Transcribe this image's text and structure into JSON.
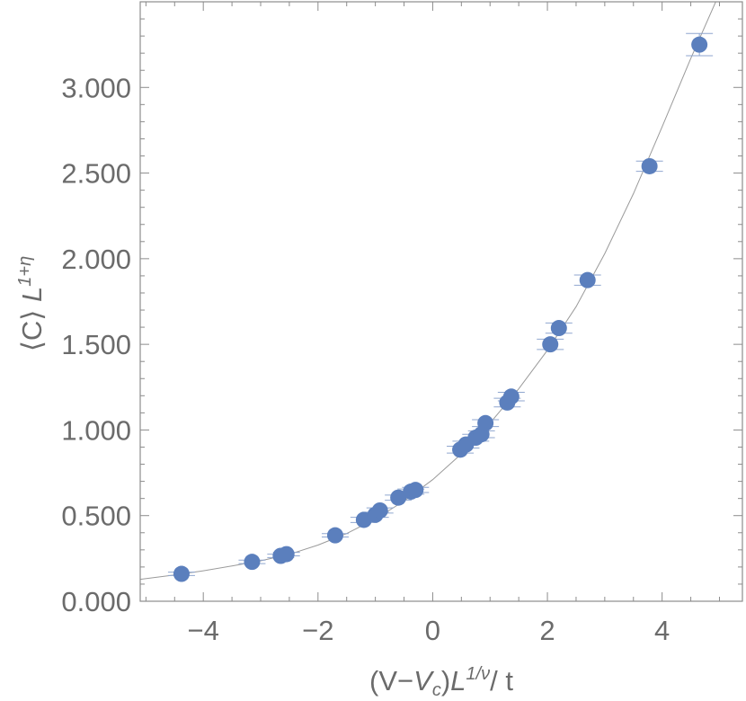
{
  "chart_data": {
    "type": "scatter",
    "xlabel": {
      "prefix": "(V−",
      "vc_main": "V",
      "vc_sub": "c",
      "close": ")",
      "L": "L",
      "sup": "1/ν",
      "suffix": "/ t"
    },
    "ylabel": {
      "prefix": "⟨C⟩ ",
      "L": "L",
      "sup": "1+η"
    },
    "xlim": [
      -5.1,
      5.4
    ],
    "ylim": [
      0,
      3.5
    ],
    "x_ticks": [
      {
        "value": -4,
        "label": "−4"
      },
      {
        "value": -2,
        "label": "−2"
      },
      {
        "value": 0,
        "label": "0"
      },
      {
        "value": 2,
        "label": "2"
      },
      {
        "value": 4,
        "label": "4"
      }
    ],
    "y_ticks": [
      {
        "value": 0,
        "label": "0.000"
      },
      {
        "value": 0.5,
        "label": "0.500"
      },
      {
        "value": 1.0,
        "label": "1.000"
      },
      {
        "value": 1.5,
        "label": "1.500"
      },
      {
        "value": 2.0,
        "label": "2.000"
      },
      {
        "value": 2.5,
        "label": "2.500"
      },
      {
        "value": 3.0,
        "label": "3.000"
      }
    ],
    "x_minor_step": 0.5,
    "y_minor_step": 0.1,
    "grid": false,
    "marker_color": "#5b7fbd",
    "errorbar_color": "#8fa6cf",
    "fit_color": "#9a9a9a",
    "frame_color": "#8c8c8c",
    "points": [
      {
        "x": -4.38,
        "y": 0.16,
        "err": 0.01
      },
      {
        "x": -3.15,
        "y": 0.23,
        "err": 0.01
      },
      {
        "x": -2.65,
        "y": 0.265,
        "err": 0.01
      },
      {
        "x": -2.55,
        "y": 0.275,
        "err": 0.01
      },
      {
        "x": -1.7,
        "y": 0.385,
        "err": 0.01
      },
      {
        "x": -1.2,
        "y": 0.475,
        "err": 0.015
      },
      {
        "x": -1.0,
        "y": 0.505,
        "err": 0.015
      },
      {
        "x": -0.92,
        "y": 0.53,
        "err": 0.015
      },
      {
        "x": -0.6,
        "y": 0.605,
        "err": 0.015
      },
      {
        "x": -0.38,
        "y": 0.64,
        "err": 0.015
      },
      {
        "x": -0.3,
        "y": 0.65,
        "err": 0.015
      },
      {
        "x": 0.48,
        "y": 0.885,
        "err": 0.02
      },
      {
        "x": 0.58,
        "y": 0.915,
        "err": 0.02
      },
      {
        "x": 0.75,
        "y": 0.955,
        "err": 0.02
      },
      {
        "x": 0.85,
        "y": 0.975,
        "err": 0.02
      },
      {
        "x": 0.92,
        "y": 1.04,
        "err": 0.02
      },
      {
        "x": 1.3,
        "y": 1.16,
        "err": 0.025
      },
      {
        "x": 1.37,
        "y": 1.195,
        "err": 0.025
      },
      {
        "x": 2.05,
        "y": 1.5,
        "err": 0.03
      },
      {
        "x": 2.2,
        "y": 1.595,
        "err": 0.03
      },
      {
        "x": 2.7,
        "y": 1.875,
        "err": 0.03
      },
      {
        "x": 3.78,
        "y": 2.54,
        "err": 0.03
      },
      {
        "x": 4.65,
        "y": 3.25,
        "err": 0.065
      }
    ],
    "fit_curve": {
      "x": [
        -5.1,
        -4.5,
        -4.0,
        -3.5,
        -3.0,
        -2.5,
        -2.0,
        -1.5,
        -1.0,
        -0.5,
        0.0,
        0.5,
        1.0,
        1.5,
        2.0,
        2.5,
        3.0,
        3.5,
        4.0,
        4.5,
        5.0,
        5.1
      ],
      "y": [
        0.128,
        0.153,
        0.178,
        0.206,
        0.236,
        0.274,
        0.328,
        0.395,
        0.48,
        0.585,
        0.71,
        0.86,
        1.04,
        1.24,
        1.465,
        1.72,
        2.03,
        2.38,
        2.77,
        3.17,
        3.55,
        3.62
      ]
    }
  }
}
